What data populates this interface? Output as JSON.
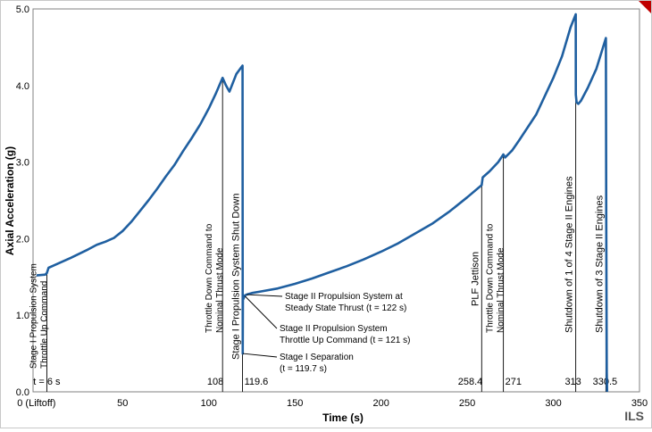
{
  "chart_data": {
    "type": "line",
    "title": "",
    "xlabel": "Time (s)",
    "ylabel": "Axial Acceleration (g)",
    "xlim": [
      -2,
      350
    ],
    "ylim": [
      0,
      5
    ],
    "grid": true,
    "x_tick_labels": [
      "0 (Liftoff)",
      "50",
      "100",
      "150",
      "200",
      "250",
      "300",
      "350"
    ],
    "x_ticks": [
      0,
      50,
      100,
      150,
      200,
      250,
      300,
      350
    ],
    "y_tick_labels": [
      "0.0",
      "1.0",
      "2.0",
      "3.0",
      "4.0",
      "5.0"
    ],
    "y_ticks": [
      0,
      1,
      2,
      3,
      4,
      5
    ],
    "color": "#1f5fa0",
    "series": [
      {
        "values": [
          [
            0,
            1.52
          ],
          [
            5,
            1.53
          ],
          [
            6,
            1.55
          ],
          [
            7,
            1.62
          ],
          [
            10,
            1.65
          ],
          [
            20,
            1.75
          ],
          [
            30,
            1.86
          ],
          [
            35,
            1.92
          ],
          [
            40,
            1.96
          ],
          [
            45,
            2.01
          ],
          [
            50,
            2.1
          ],
          [
            55,
            2.22
          ],
          [
            60,
            2.36
          ],
          [
            65,
            2.5
          ],
          [
            70,
            2.65
          ],
          [
            75,
            2.81
          ],
          [
            80,
            2.96
          ],
          [
            85,
            3.14
          ],
          [
            90,
            3.31
          ],
          [
            95,
            3.49
          ],
          [
            100,
            3.7
          ],
          [
            104,
            3.89
          ],
          [
            108,
            4.1
          ],
          [
            110,
            4.0
          ],
          [
            112,
            3.92
          ],
          [
            116,
            4.15
          ],
          [
            119.6,
            4.26
          ],
          [
            119.7,
            0.5
          ],
          [
            119.8,
            1.2
          ],
          [
            121,
            1.26
          ],
          [
            122,
            1.27
          ],
          [
            125,
            1.29
          ],
          [
            130,
            1.31
          ],
          [
            140,
            1.35
          ],
          [
            150,
            1.41
          ],
          [
            160,
            1.48
          ],
          [
            170,
            1.56
          ],
          [
            180,
            1.64
          ],
          [
            190,
            1.73
          ],
          [
            200,
            1.83
          ],
          [
            210,
            1.94
          ],
          [
            220,
            2.07
          ],
          [
            230,
            2.2
          ],
          [
            240,
            2.36
          ],
          [
            250,
            2.54
          ],
          [
            258.4,
            2.7
          ],
          [
            259,
            2.8
          ],
          [
            263,
            2.88
          ],
          [
            268,
            3.0
          ],
          [
            271,
            3.1
          ],
          [
            272,
            3.06
          ],
          [
            276,
            3.15
          ],
          [
            280,
            3.28
          ],
          [
            290,
            3.62
          ],
          [
            300,
            4.1
          ],
          [
            305,
            4.38
          ],
          [
            310,
            4.76
          ],
          [
            313,
            4.93
          ],
          [
            313.05,
            3.88
          ],
          [
            313.5,
            3.78
          ],
          [
            314.5,
            3.76
          ],
          [
            316,
            3.8
          ],
          [
            320,
            3.97
          ],
          [
            325,
            4.22
          ],
          [
            330.5,
            4.62
          ],
          [
            330.7,
            2.3
          ],
          [
            331,
            0.25
          ],
          [
            331.2,
            0.0
          ]
        ]
      }
    ],
    "events": [
      {
        "x": 6,
        "value_label": "t = 6 s",
        "annotation": [
          "Stage I Propulsion System",
          "Throttle Up Command"
        ]
      },
      {
        "x": 108,
        "value_label": "108",
        "annotation": [
          "Throttle Down Command to",
          "Nominal Thrust Mode"
        ]
      },
      {
        "x": 119.6,
        "value_label": "119.6",
        "annotation": [
          "Stage I Propulsion System Shut Down"
        ]
      },
      {
        "x": 258.4,
        "value_label": "258.4",
        "annotation": [
          "PLF Jettison"
        ]
      },
      {
        "x": 271,
        "value_label": "271",
        "annotation": [
          "Throttle Down Command to",
          "Nominal Thrust Mode"
        ]
      },
      {
        "x": 313,
        "value_label": "313",
        "annotation": [
          "Shutdown of 1 of 4 Stage II Engines"
        ]
      },
      {
        "x": 330.5,
        "value_label": "330.5",
        "annotation": [
          "Shutdown of 3 Stage II Engines"
        ]
      }
    ],
    "callouts": [
      {
        "x": 122,
        "y": 1.27,
        "lines": [
          "Stage II Propulsion System at",
          "Steady State Thrust (t = 122 s)"
        ]
      },
      {
        "x": 121,
        "y": 1.25,
        "lines": [
          "Stage II Propulsion System",
          "Throttle Up Command (t = 121 s)"
        ]
      },
      {
        "x": 119.7,
        "y": 0.5,
        "lines": [
          "Stage I Separation",
          "(t = 119.7 s)"
        ]
      }
    ]
  },
  "brand": "ILS"
}
